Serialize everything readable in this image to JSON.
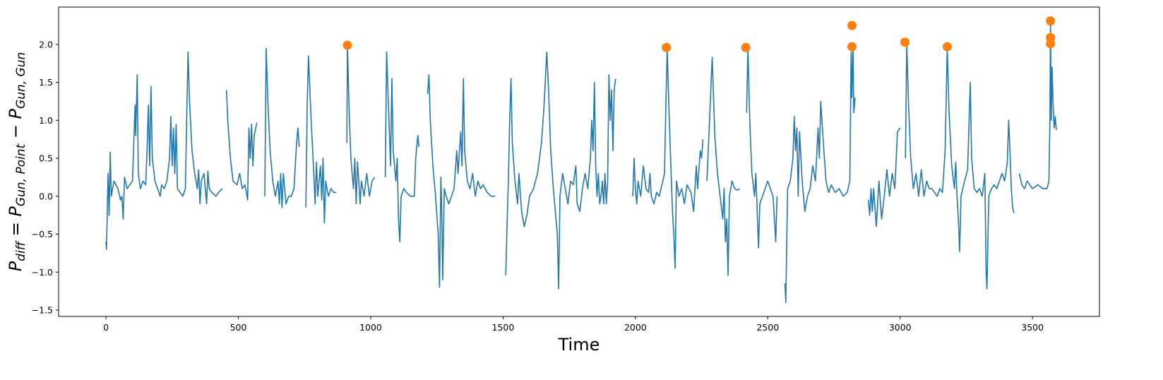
{
  "chart_data": {
    "type": "line",
    "xlabel": "Time",
    "ylabel": [
      {
        "text": "P"
      },
      {
        "text": "diff",
        "sub": true
      },
      {
        "text": " = P"
      },
      {
        "text": "Gun, Point",
        "sub": true
      },
      {
        "text": " − P"
      },
      {
        "text": "Gun, Gun",
        "sub": true
      }
    ],
    "xlim": [
      -179,
      3753
    ],
    "ylim": [
      -1.584,
      2.493
    ],
    "xticks": [
      0,
      500,
      1000,
      1500,
      2000,
      2500,
      3000,
      3500
    ],
    "yticks": [
      {
        "value": -1.5,
        "label": "−1.5"
      },
      {
        "value": -1,
        "label": "−1.0"
      },
      {
        "value": -0.5,
        "label": "−0.5"
      },
      {
        "value": 0,
        "label": "0.0"
      },
      {
        "value": 0.5,
        "label": "0.5"
      },
      {
        "value": 1,
        "label": "1.0"
      },
      {
        "value": 1.5,
        "label": "1.5"
      },
      {
        "value": 2,
        "label": "2.0"
      }
    ],
    "series": [
      {
        "type": "line",
        "color": "#1f77b4",
        "x": [
          0,
          2,
          8,
          12,
          16,
          20,
          30,
          45,
          55,
          60,
          65,
          70,
          80,
          90,
          100,
          105,
          110,
          112,
          118,
          122,
          130,
          140,
          150,
          155,
          160,
          165,
          170,
          175,
          185,
          195,
          205,
          210,
          220,
          230,
          240,
          245,
          250,
          255,
          260,
          265,
          270,
          280,
          290,
          300,
          305,
          310,
          315,
          325,
          335,
          345,
          350,
          355,
          360,
          370,
          380,
          385,
          390,
          400,
          415,
          425,
          440,
          null,
          455,
          460,
          470,
          480,
          495,
          505,
          515,
          525,
          535,
          540,
          545,
          550,
          555,
          560,
          570,
          null,
          600,
          605,
          612,
          620,
          630,
          640,
          650,
          655,
          660,
          665,
          670,
          680,
          690,
          700,
          710,
          720,
          725,
          730,
          null,
          755,
          760,
          765,
          775,
          785,
          790,
          795,
          800,
          810,
          815,
          820,
          825,
          830,
          840,
          850,
          860,
          870,
          null,
          910,
          912,
          918,
          925,
          935,
          940,
          945,
          950,
          955,
          960,
          965,
          975,
          985,
          995,
          1005,
          1015,
          null,
          1055,
          1060,
          1068,
          1075,
          1080,
          1085,
          1095,
          1100,
          1105,
          1110,
          1115,
          1125,
          1135,
          1150,
          1165,
          1170,
          1178,
          1182,
          null,
          1215,
          1220,
          1225,
          1235,
          1245,
          1255,
          1260,
          1265,
          1268,
          1272,
          1278,
          1285,
          1295,
          1305,
          1315,
          1325,
          1330,
          1340,
          1345,
          1350,
          1355,
          1365,
          1375,
          1385,
          1395,
          1405,
          1415,
          1425,
          1440,
          1455,
          1470,
          null,
          1510,
          1515,
          1520,
          1525,
          1530,
          1535,
          1545,
          1555,
          1560,
          1570,
          1580,
          1590,
          1600,
          1615,
          1630,
          1645,
          1655,
          1665,
          1672,
          1680,
          1690,
          1700,
          1705,
          1710,
          1715,
          1725,
          1735,
          1745,
          1755,
          1765,
          1775,
          1780,
          1790,
          1800,
          1810,
          1820,
          1830,
          1835,
          1840,
          1845,
          1850,
          1855,
          1860,
          1865,
          1870,
          1875,
          1880,
          1885,
          1890,
          1895,
          1900,
          1905,
          1910,
          1915,
          1920,
          1925,
          null,
          1990,
          1995,
          2000,
          2005,
          2010,
          2020,
          2030,
          2040,
          2050,
          2055,
          2060,
          2070,
          2080,
          2090,
          2100,
          2110,
          2115,
          2120,
          2128,
          2135,
          2140,
          2145,
          2150,
          2155,
          2165,
          2175,
          2185,
          2195,
          2210,
          2220,
          2230,
          2235,
          2245,
          2250,
          2255,
          null,
          2270,
          2280,
          2290,
          2300,
          2310,
          2320,
          2330,
          2335,
          2340,
          2345,
          2350,
          2355,
          2365,
          2375,
          2385,
          2395,
          null,
          2420,
          2425,
          2432,
          2440,
          2450,
          2455,
          2460,
          2465,
          2470,
          2480,
          2490,
          2500,
          2510,
          2520,
          2530,
          2535,
          null,
          2565,
          2568,
          2575,
          2585,
          2595,
          2600,
          2605,
          2610,
          2615,
          2620,
          2630,
          2640,
          2650,
          2660,
          2670,
          2680,
          2690,
          2695,
          2700,
          2710,
          2720,
          2730,
          2740,
          2755,
          2770,
          2785,
          2800,
          2810,
          2815,
          2818,
          2822,
          2825,
          2830,
          null,
          2880,
          2885,
          2890,
          2895,
          2900,
          2910,
          2920,
          2930,
          2940,
          2950,
          2960,
          2970,
          2980,
          2990,
          3000,
          null,
          3020,
          3025,
          3032,
          3040,
          3050,
          3060,
          3070,
          3080,
          3090,
          3100,
          3110,
          3120,
          3130,
          3140,
          3150,
          3160,
          3170,
          3178,
          3185,
          3195,
          3205,
          3210,
          3215,
          3220,
          3225,
          3230,
          3240,
          3255,
          3265,
          3270,
          3280,
          3290,
          3300,
          3310,
          3320,
          3325,
          3328,
          3335,
          3345,
          3355,
          3365,
          3375,
          3385,
          3395,
          3405,
          3410,
          3415,
          3420,
          3425,
          3430,
          null,
          3450,
          3460,
          3470,
          3480,
          3500,
          3520,
          3540,
          3555,
          3562,
          3566,
          3568,
          3571,
          3574,
          3578,
          3582,
          3586,
          3590
        ],
        "values": [
          -0.6,
          -0.7,
          0.3,
          -0.25,
          0.58,
          0,
          0.2,
          0.1,
          -0.05,
          0,
          -0.3,
          0.25,
          0.1,
          0.15,
          0.2,
          0.7,
          1.2,
          0.8,
          1.6,
          0.3,
          0.1,
          0.2,
          0.15,
          0.6,
          1.2,
          0.4,
          1.45,
          0.5,
          0.2,
          0.1,
          0,
          0.15,
          0.1,
          0.2,
          0.5,
          1.05,
          0.4,
          0.9,
          0.3,
          0.95,
          0.1,
          0.05,
          0,
          0.1,
          1.05,
          1.9,
          1.3,
          0.6,
          0.3,
          0.1,
          0.35,
          -0.1,
          0.2,
          0.3,
          -0.1,
          0.33,
          0.1,
          0.05,
          0,
          0.05,
          0.1,
          null,
          1.4,
          1.0,
          0.5,
          0.2,
          0.15,
          0.3,
          0.1,
          0.15,
          -0.05,
          0.9,
          0.5,
          0.95,
          0.4,
          0.8,
          0.97,
          null,
          0,
          1.95,
          1.2,
          0.6,
          0.2,
          0,
          0.2,
          -0.1,
          0.3,
          -0.15,
          0.3,
          -0.1,
          0,
          0,
          0.1,
          0.7,
          0.9,
          0.65,
          null,
          -0.15,
          1.2,
          1.85,
          1.0,
          0.3,
          -0.1,
          0.45,
          0,
          0.4,
          -0.05,
          0.5,
          -0.35,
          0.2,
          0,
          0.1,
          0.05,
          0.05,
          null,
          0.7,
          2.0,
          1.2,
          0.5,
          0.1,
          0.5,
          -0.1,
          0.45,
          0.2,
          -0.1,
          0.2,
          0,
          0.3,
          0,
          0.2,
          0.25,
          null,
          0.25,
          1.9,
          1.1,
          0.4,
          1.55,
          0.6,
          0.2,
          0.5,
          -0.3,
          -0.6,
          0,
          0.1,
          0.05,
          0,
          0,
          0.5,
          0.8,
          0.65,
          null,
          1.35,
          1.6,
          1.0,
          0.4,
          0,
          -0.5,
          -1.2,
          0.25,
          -0.1,
          -1.1,
          0.1,
          0,
          -0.1,
          0,
          0.1,
          0.6,
          0.3,
          0.85,
          0.4,
          1.55,
          0.6,
          0.2,
          0.1,
          0.3,
          0,
          0.2,
          0.1,
          0.15,
          0.05,
          0,
          0,
          null,
          -1.04,
          -0.4,
          0.2,
          1.0,
          1.55,
          0.7,
          0.2,
          -0.1,
          0.3,
          -0.2,
          -0.4,
          -0.25,
          0,
          0.1,
          0.3,
          0.7,
          1.2,
          1.9,
          1.4,
          0.6,
          0.1,
          -0.3,
          -0.5,
          -1.22,
          0,
          0.3,
          0.1,
          -0.1,
          0.2,
          0.15,
          0.4,
          -0.1,
          -0.2,
          0.1,
          0.3,
          0.1,
          0.5,
          1.0,
          0.6,
          1.5,
          0.4,
          0,
          0.3,
          -0.1,
          0,
          0.2,
          -0.1,
          0.3,
          -0.1,
          0.2,
          1.6,
          1.0,
          1.4,
          0.6,
          1.4,
          1.55,
          null,
          0,
          0.5,
          0.1,
          -0.1,
          0.2,
          0,
          0.4,
          0.1,
          0.05,
          0.3,
          0,
          -0.1,
          0.05,
          0,
          0.15,
          0.3,
          1.2,
          1.95,
          1.0,
          0.3,
          -0.2,
          -0.5,
          -0.95,
          0.2,
          0,
          0.1,
          -0.1,
          0.15,
          0.05,
          -0.2,
          0.4,
          0.1,
          0.6,
          0.5,
          0.75,
          null,
          0.2,
          1.0,
          1.83,
          0.8,
          0.3,
          0,
          -0.3,
          0.1,
          -0.6,
          -0.3,
          -1.04,
          0,
          0.2,
          0.1,
          0.08,
          0.1,
          null,
          1.1,
          1.95,
          1.0,
          0.3,
          0,
          0.3,
          -0.2,
          -0.68,
          -0.1,
          0,
          0.1,
          0.2,
          0.1,
          0,
          -0.6,
          0,
          null,
          -1.15,
          -1.4,
          0.1,
          0.2,
          0.5,
          1.05,
          0.6,
          0.9,
          0,
          0.85,
          0.2,
          -0.2,
          0,
          0.1,
          0.4,
          0.2,
          0.9,
          0.5,
          1.25,
          0.7,
          0.2,
          0.05,
          0.15,
          0.05,
          0.1,
          0,
          0.05,
          0.2,
          1.9,
          1.3,
          2.0,
          1.1,
          1.3,
          null,
          -0.05,
          -0.25,
          0.1,
          -0.2,
          0.1,
          -0.4,
          0.2,
          -0.3,
          0,
          0.35,
          0,
          0.3,
          0.1,
          0.85,
          0.9,
          null,
          0.5,
          2.0,
          1.2,
          0.5,
          0.1,
          0.3,
          0,
          0.35,
          0,
          0.2,
          0.1,
          0.1,
          0.05,
          0,
          0.1,
          0.05,
          0.6,
          1.95,
          1.1,
          0.4,
          0.1,
          0.45,
          0,
          -0.3,
          -0.73,
          0,
          0.15,
          0.35,
          1.5,
          0.5,
          0.1,
          0.05,
          0.1,
          0,
          0.3,
          -1.0,
          -1.22,
          0,
          0.1,
          0.15,
          0.1,
          0.2,
          0.3,
          0.2,
          0.45,
          1.0,
          0.6,
          0.1,
          -0.15,
          -0.22,
          null,
          0.3,
          0.15,
          0.1,
          0.2,
          0.1,
          0.15,
          0.1,
          0.1,
          0.2,
          1.0,
          2.3,
          1.0,
          1.7,
          1.2,
          0.9,
          1.05,
          0.87
        ]
      },
      {
        "type": "scatter",
        "color": "#ff7f0e",
        "x": [
          912,
          2117,
          2417,
          2818,
          2818,
          3018,
          3178,
          3568,
          3568,
          3568
        ],
        "values": [
          1.99,
          1.96,
          1.96,
          2.25,
          1.97,
          2.03,
          1.97,
          2.31,
          2.09,
          2.01
        ]
      }
    ]
  }
}
